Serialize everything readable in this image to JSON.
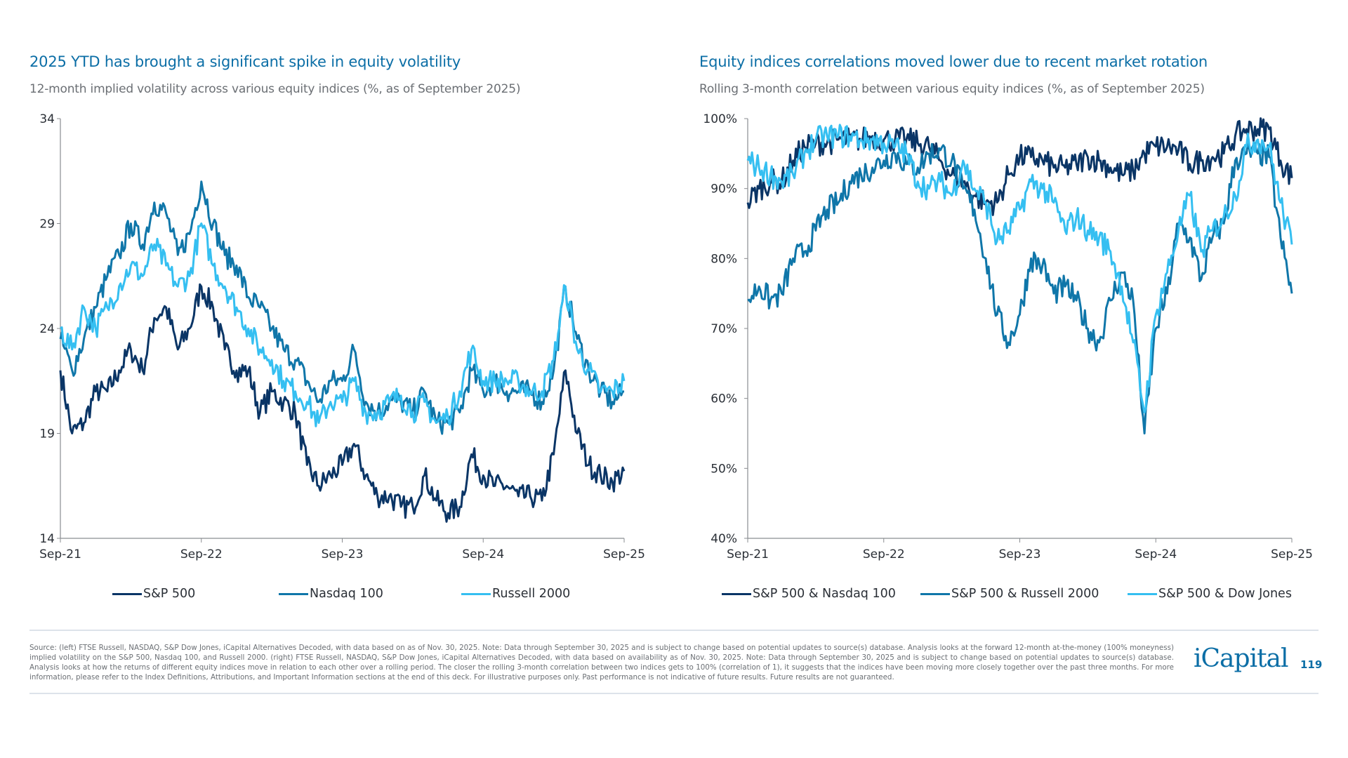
{
  "colors": {
    "title": "#0b6ea6",
    "dark": "#0a3566",
    "mid": "#0f76a9",
    "light": "#35bff1"
  },
  "chart_data": [
    {
      "type": "line",
      "title": "2025 YTD has brought a significant spike in equity volatility",
      "subtitle": "12-month implied volatility across various equity indices (%, as of September 2025)",
      "xlabel": "",
      "ylabel": "",
      "ylim": [
        14,
        34
      ],
      "yticks": [
        "34",
        "29",
        "24",
        "19",
        "14"
      ],
      "ytick_values": [
        34,
        29,
        24,
        19,
        14
      ],
      "xticks": [
        "Sep-21",
        "Sep-22",
        "Sep-23",
        "Sep-24",
        "Sep-25"
      ],
      "xrange": [
        "2021-09",
        "2025-09"
      ],
      "legend": "bottom",
      "grid": false,
      "x": [
        "2021-09",
        "2021-10",
        "2021-11",
        "2021-12",
        "2022-01",
        "2022-02",
        "2022-03",
        "2022-04",
        "2022-05",
        "2022-06",
        "2022-07",
        "2022-08",
        "2022-09",
        "2022-10",
        "2022-11",
        "2022-12",
        "2023-01",
        "2023-02",
        "2023-03",
        "2023-04",
        "2023-05",
        "2023-06",
        "2023-07",
        "2023-08",
        "2023-09",
        "2023-10",
        "2023-11",
        "2023-12",
        "2024-01",
        "2024-02",
        "2024-03",
        "2024-04",
        "2024-05",
        "2024-06",
        "2024-07",
        "2024-08",
        "2024-09",
        "2024-10",
        "2024-11",
        "2024-12",
        "2025-01",
        "2025-02",
        "2025-03",
        "2025-04",
        "2025-05",
        "2025-06",
        "2025-07",
        "2025-08",
        "2025-09"
      ],
      "series": [
        {
          "name": "S&P 500",
          "color": "#0a3566",
          "values": [
            22,
            19,
            19.5,
            21,
            21,
            22,
            23,
            22,
            24.5,
            25,
            23,
            24,
            26,
            25,
            23,
            22,
            22,
            20,
            21,
            20.5,
            20,
            17.5,
            16.5,
            17,
            17.5,
            18.5,
            17,
            16,
            16,
            15.5,
            15.5,
            17,
            15.8,
            15.2,
            15.5,
            18,
            17,
            16.5,
            16.5,
            16,
            16,
            15.8,
            18,
            22,
            19,
            17.5,
            17,
            16.7,
            17.2
          ]
        },
        {
          "name": "Nasdaq 100",
          "color": "#0f76a9",
          "values": [
            23.5,
            22,
            23.5,
            25,
            26.5,
            27.5,
            29,
            28,
            30,
            29.5,
            27.5,
            28.5,
            31,
            29,
            27.5,
            27,
            25.5,
            25,
            24,
            23,
            22.5,
            21.5,
            20.5,
            21.5,
            21.5,
            23,
            20.5,
            20,
            20.5,
            20.5,
            20,
            21,
            19.5,
            19.5,
            20,
            22,
            21,
            21.5,
            21,
            21,
            21,
            20.5,
            22,
            26,
            23.5,
            22,
            21,
            20.5,
            21
          ]
        },
        {
          "name": "Russell 2000",
          "color": "#35bff1",
          "values": [
            24,
            23,
            25,
            24,
            25,
            26,
            27,
            26.5,
            28,
            27,
            26,
            26.5,
            29,
            27,
            26,
            25,
            24,
            23,
            22.5,
            21.5,
            21,
            20.5,
            19.5,
            20.5,
            20.5,
            21.5,
            20,
            20,
            20.5,
            20.8,
            20,
            20.5,
            19.5,
            19.8,
            21,
            23,
            21.5,
            21.5,
            21.5,
            21.5,
            21,
            21,
            22.5,
            26,
            23,
            22,
            21,
            21,
            21.5
          ]
        }
      ]
    },
    {
      "type": "line",
      "title": "Equity indices correlations moved lower due to recent market rotation",
      "subtitle": "Rolling 3-month correlation between various equity indices (%, as of September 2025)",
      "xlabel": "",
      "ylabel": "",
      "ylim": [
        40,
        100
      ],
      "yticks": [
        "100%",
        "90%",
        "80%",
        "70%",
        "60%",
        "50%",
        "40%"
      ],
      "ytick_values": [
        100,
        90,
        80,
        70,
        60,
        50,
        40
      ],
      "xticks": [
        "Sep-21",
        "Sep-22",
        "Sep-23",
        "Sep-24",
        "Sep-25"
      ],
      "xrange": [
        "2021-09",
        "2025-09"
      ],
      "legend": "bottom",
      "grid": false,
      "x": [
        "2021-09",
        "2021-10",
        "2021-11",
        "2021-12",
        "2022-01",
        "2022-02",
        "2022-03",
        "2022-04",
        "2022-05",
        "2022-06",
        "2022-07",
        "2022-08",
        "2022-09",
        "2022-10",
        "2022-11",
        "2022-12",
        "2023-01",
        "2023-02",
        "2023-03",
        "2023-04",
        "2023-05",
        "2023-06",
        "2023-07",
        "2023-08",
        "2023-09",
        "2023-10",
        "2023-11",
        "2023-12",
        "2024-01",
        "2024-02",
        "2024-03",
        "2024-04",
        "2024-05",
        "2024-06",
        "2024-07",
        "2024-08",
        "2024-09",
        "2024-10",
        "2024-11",
        "2024-12",
        "2025-01",
        "2025-02",
        "2025-03",
        "2025-04",
        "2025-05",
        "2025-06",
        "2025-07",
        "2025-08",
        "2025-09"
      ],
      "series": [
        {
          "name": "S&P 500 & Nasdaq 100",
          "color": "#0a3566",
          "values": [
            88,
            90,
            91,
            91,
            94,
            96,
            96.5,
            96.5,
            97,
            97,
            97,
            97.5,
            97,
            97,
            97,
            96.5,
            96,
            94,
            92,
            91,
            89,
            88,
            88,
            92,
            94.5,
            94.5,
            94,
            93,
            93,
            93.5,
            94.5,
            94,
            93,
            92,
            92.5,
            95,
            96,
            96,
            95.5,
            93.5,
            94,
            94.5,
            95,
            97.5,
            98.5,
            98.5,
            98.5,
            94,
            91.5
          ]
        },
        {
          "name": "S&P 500 & Russell 2000",
          "color": "#0f76a9",
          "values": [
            74,
            76,
            74,
            75,
            80,
            81,
            84,
            87,
            88,
            91,
            92,
            93,
            94,
            95,
            93.5,
            93,
            95,
            95.5,
            94,
            90,
            87,
            80,
            72,
            68,
            72,
            80,
            79,
            75,
            76,
            74,
            70,
            68,
            74,
            78,
            74,
            55,
            70,
            75,
            85,
            83,
            77,
            83,
            85,
            94,
            95,
            95,
            94.5,
            83,
            75
          ]
        },
        {
          "name": "S&P 500 & Dow Jones",
          "color": "#35bff1",
          "values": [
            94,
            93,
            92,
            91,
            92,
            95,
            97,
            97.5,
            97.5,
            97.5,
            97,
            97,
            96.5,
            96,
            95,
            91,
            90,
            91,
            89,
            94,
            90,
            88,
            82.5,
            84,
            87,
            91,
            90,
            88,
            84,
            86,
            84,
            83,
            81,
            76,
            68,
            58,
            72,
            78,
            84,
            89,
            81,
            84,
            86,
            89,
            96,
            97,
            96,
            88,
            82
          ]
        }
      ]
    }
  ],
  "footer": {
    "source": "Source: (left) FTSE Russell, NASDAQ, S&P Dow Jones, iCapital Alternatives Decoded, with data based on as of Nov. 30, 2025. Note: Data through September 30, 2025 and is subject to change based on potential updates to source(s) database. Analysis looks at the forward 12-month at-the-money (100% moneyness) implied volatility on the S&P 500, Nasdaq 100, and Russell 2000. (right) FTSE Russell, NASDAQ, S&P Dow Jones, iCapital Alternatives Decoded, with data based on availability as of Nov. 30, 2025. Note: Data through September 30, 2025 and is subject to change based on potential updates to source(s) database. Analysis looks at how the returns of different equity indices move in relation to each other over a rolling period. The closer the rolling 3-month correlation between two indices gets to 100% (correlation of 1), it suggests that the indices have been moving more closely together over the past three months. For more information, please refer to the Index Definitions, Attributions, and Important Information sections at the end of this deck. For illustrative purposes only. Past performance is not indicative of future results. Future results are not guaranteed.",
    "logo": "iCapital",
    "page_number": "119"
  }
}
